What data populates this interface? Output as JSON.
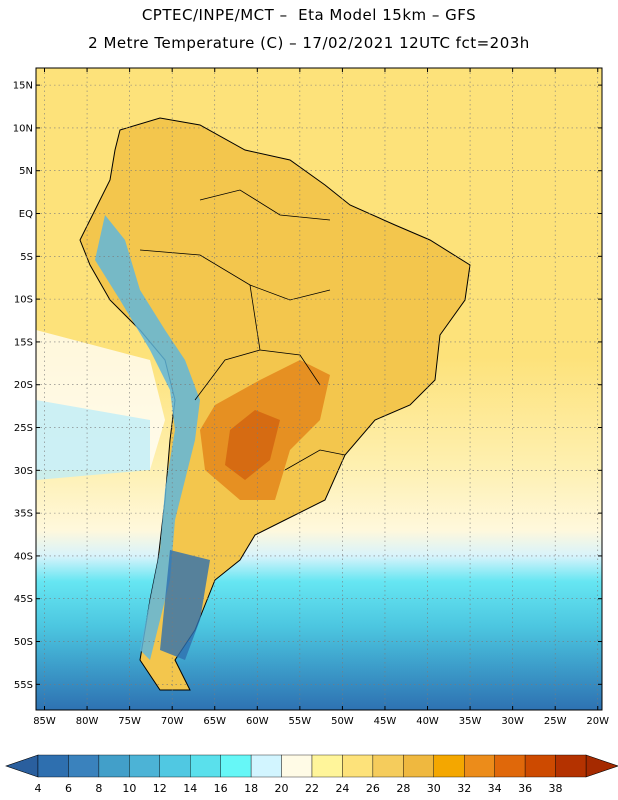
{
  "header": {
    "line1": "CPTEC/INPE/MCT –  Eta Model 15km – GFS",
    "line2": "2 Metre Temperature (C) – 17/02/2021 12UTC fct=203h"
  },
  "map": {
    "lon_range": [
      -86,
      -19.5
    ],
    "lat_range": [
      -58,
      17
    ],
    "lat_ticks": [
      {
        "value": 15,
        "label": "15N"
      },
      {
        "value": 10,
        "label": "10N"
      },
      {
        "value": 5,
        "label": "5N"
      },
      {
        "value": 0,
        "label": "EQ"
      },
      {
        "value": -5,
        "label": "5S"
      },
      {
        "value": -10,
        "label": "10S"
      },
      {
        "value": -15,
        "label": "15S"
      },
      {
        "value": -20,
        "label": "20S"
      },
      {
        "value": -25,
        "label": "25S"
      },
      {
        "value": -30,
        "label": "30S"
      },
      {
        "value": -35,
        "label": "35S"
      },
      {
        "value": -40,
        "label": "40S"
      },
      {
        "value": -45,
        "label": "45S"
      },
      {
        "value": -50,
        "label": "50S"
      },
      {
        "value": -55,
        "label": "55S"
      }
    ],
    "lon_ticks": [
      {
        "value": -85,
        "label": "85W"
      },
      {
        "value": -80,
        "label": "80W"
      },
      {
        "value": -75,
        "label": "75W"
      },
      {
        "value": -70,
        "label": "70W"
      },
      {
        "value": -65,
        "label": "65W"
      },
      {
        "value": -60,
        "label": "60W"
      },
      {
        "value": -55,
        "label": "55W"
      },
      {
        "value": -50,
        "label": "50W"
      },
      {
        "value": -45,
        "label": "45W"
      },
      {
        "value": -40,
        "label": "40W"
      },
      {
        "value": -35,
        "label": "35W"
      },
      {
        "value": -30,
        "label": "30W"
      },
      {
        "value": -25,
        "label": "25W"
      },
      {
        "value": -20,
        "label": "20W"
      }
    ]
  },
  "colorbar": {
    "labels": [
      "4",
      "6",
      "8",
      "10",
      "12",
      "14",
      "16",
      "18",
      "20",
      "22",
      "24",
      "26",
      "28",
      "30",
      "32",
      "34",
      "36",
      "38"
    ],
    "colors": [
      "#2e6faf",
      "#3a82bd",
      "#429fc9",
      "#4cb3d6",
      "#50c8e2",
      "#5ae0ec",
      "#66f7f7",
      "#d2f5ff",
      "#fffbe6",
      "#fff59a",
      "#fde27a",
      "#f5cc5c",
      "#efb83f",
      "#f4a700",
      "#ec8c1a",
      "#e0680a",
      "#cd4a00",
      "#b43200"
    ],
    "low_arrow_color": "#2a5f9e",
    "high_arrow_color": "#a52a00"
  }
}
